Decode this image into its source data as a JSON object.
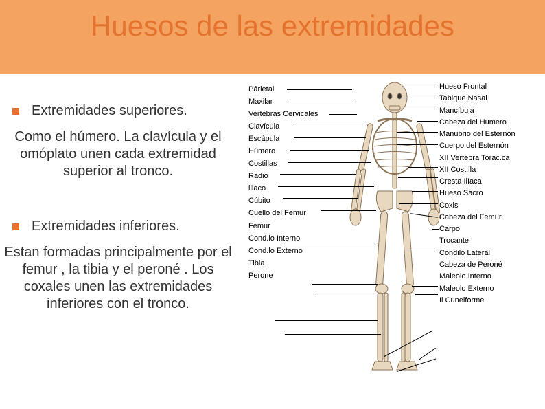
{
  "colors": {
    "header_band": "#f4a460",
    "title_color": "#e57330",
    "bullet_color": "#e57330",
    "text_color": "#333333",
    "background": "#ffffff",
    "label_color": "#000000",
    "skeleton_fill": "#e8d8c0",
    "skeleton_stroke": "#8b7355"
  },
  "title": "Huesos de las extremidades",
  "sections": [
    {
      "heading": "Extremidades superiores.",
      "body": "Como el húmero. La clavícula y el omóplato unen cada extremidad superior al tronco."
    },
    {
      "heading": "Extremidades inferiores.",
      "body": "Estan  formadas principalmente por el femur , la tibia y el peroné . Los coxales unen las extremidades inferiores con el tronco."
    }
  ],
  "diagram": {
    "left_labels": [
      "Párietal",
      "Maxilar",
      "Vertebras Cervicales",
      "Clavícula",
      "Escápula",
      "Húmero",
      "Costillas",
      "Radio",
      "iliaco",
      "Cúbito",
      "Cuello del Femur",
      "Fémur",
      "Cond.lo Interno",
      "Cond.lo Externo",
      "Tibia",
      "Perone"
    ],
    "right_labels": [
      "Hueso Frontal",
      "Tabique Nasal",
      "Mancíbula",
      "Cabeza del Humero",
      "Manubrio del Esternón",
      "Cuerpo del Esternón",
      "XII Vertebra Torac.ca",
      "XII Cost.lla",
      "Cresta Ilíaca",
      "Hueso Sacro",
      "Coxis",
      "Cabeza del Femur",
      "Carpo",
      "Trocante",
      "Condilo Lateral",
      "Cabeza de Peroné",
      "Maleolo Interno",
      "Maleolo Externo",
      "Il Cuneiforme"
    ]
  },
  "fonts": {
    "title_size": 42,
    "body_size": 20,
    "label_size": 11
  }
}
